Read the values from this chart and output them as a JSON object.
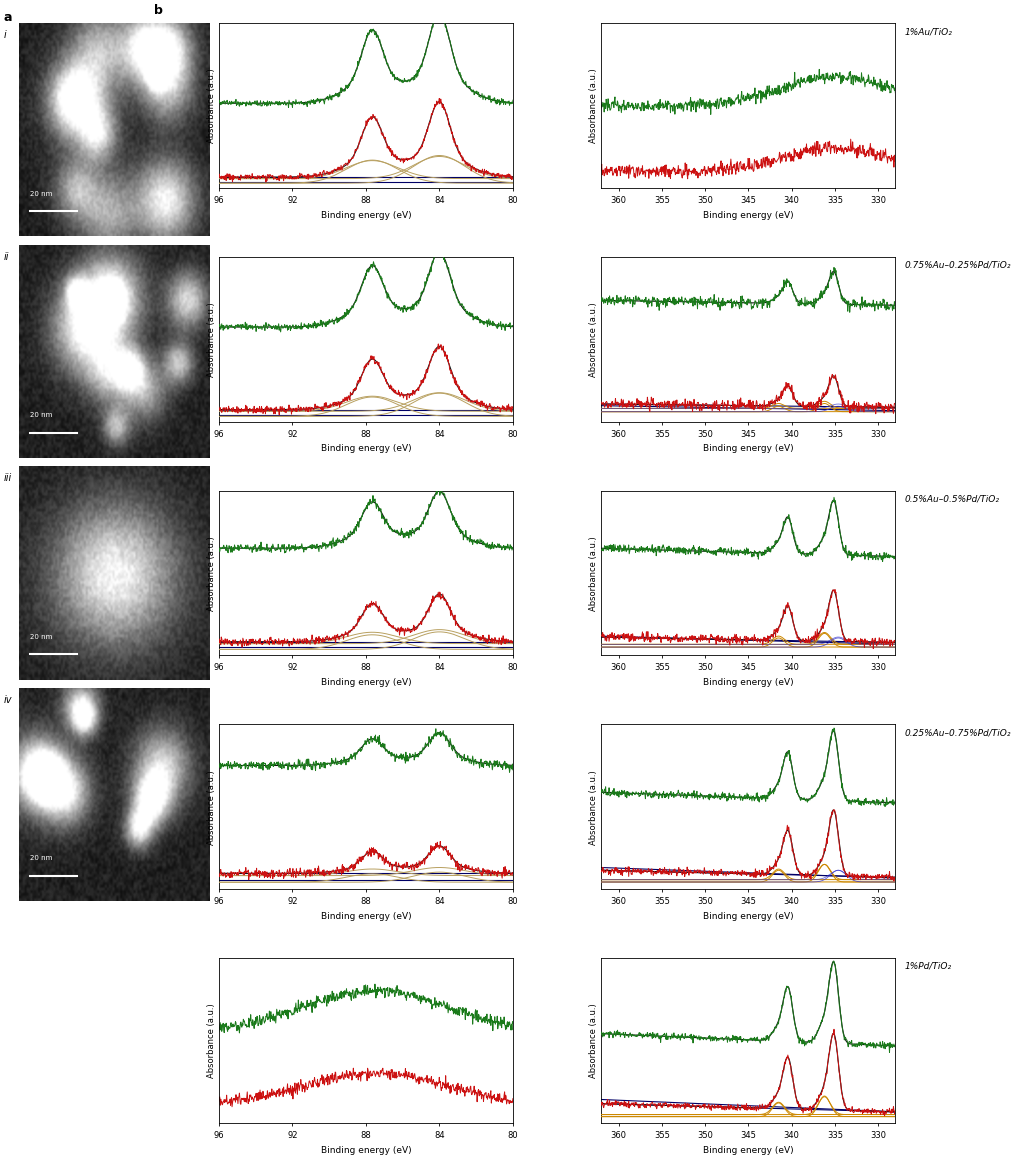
{
  "row_labels": [
    "1%Au/TiO₂",
    "0.75%Au–0.25%Pd/TiO₂",
    "0.5%Au–0.5%Pd/TiO₂",
    "0.25%Au–0.75%Pd/TiO₂",
    "1%Pd/TiO₂"
  ],
  "tem_labels": [
    "i",
    "ii",
    "iii",
    "iv"
  ],
  "scale_bar_text": "20 nm",
  "xlabel_au": "Binding energy (eV)",
  "xlabel_pd": "Binding energy (eV)",
  "ylabel": "Absorbance (a.u.)",
  "green_color": "#1a7a1a",
  "red_color": "#cc1111",
  "dark_olive": "#808040",
  "tan_color": "#b8a060",
  "black_color": "#111111",
  "navy_color": "#000066",
  "orange_color": "#cc8800",
  "blue_color": "#3333cc",
  "purple_color": "#8844aa",
  "bg_color": "#ffffff"
}
